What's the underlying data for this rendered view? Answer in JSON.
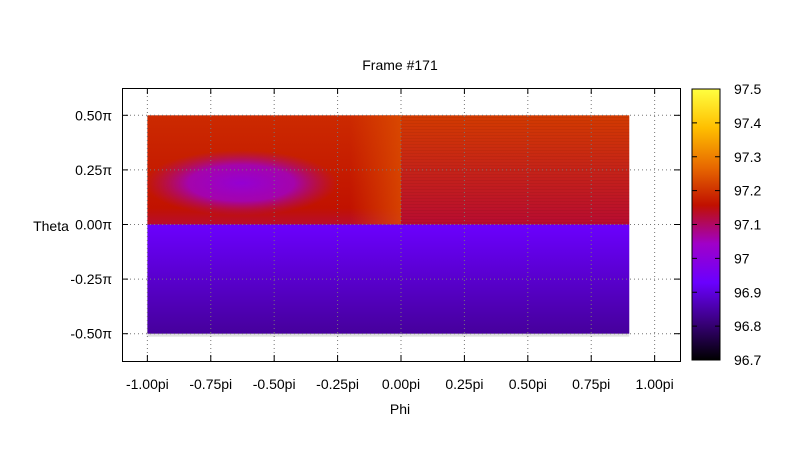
{
  "chart_data": {
    "type": "heatmap",
    "title": "Frame #171",
    "xlabel": "Phi",
    "ylabel": "Theta",
    "x_unit": "pi",
    "y_unit": "π",
    "xlim": [
      -1.1,
      1.1
    ],
    "ylim": [
      -0.625,
      0.625
    ],
    "x_ticks": [
      {
        "value": -1.0,
        "label": "-1.00pi"
      },
      {
        "value": -0.75,
        "label": "-0.75pi"
      },
      {
        "value": -0.5,
        "label": "-0.50pi"
      },
      {
        "value": -0.25,
        "label": "-0.25pi"
      },
      {
        "value": 0.0,
        "label": "0.00pi"
      },
      {
        "value": 0.25,
        "label": "0.25pi"
      },
      {
        "value": 0.5,
        "label": "0.50pi"
      },
      {
        "value": 0.75,
        "label": "0.75pi"
      },
      {
        "value": 1.0,
        "label": "1.00pi"
      }
    ],
    "y_ticks": [
      {
        "value": 0.5,
        "label": "0.50π"
      },
      {
        "value": 0.25,
        "label": "0.25π"
      },
      {
        "value": 0.0,
        "label": "0.00π"
      },
      {
        "value": -0.25,
        "label": "-0.25π"
      },
      {
        "value": -0.5,
        "label": "-0.50π"
      }
    ],
    "grid": true,
    "data_extent": {
      "x": [
        -1.0,
        0.9
      ],
      "y": [
        -0.5,
        0.5
      ]
    },
    "colorbar": {
      "range": [
        96.7,
        97.5
      ],
      "ticks": [
        {
          "value": 97.5,
          "label": "97.5"
        },
        {
          "value": 97.4,
          "label": "97.4"
        },
        {
          "value": 97.3,
          "label": "97.3"
        },
        {
          "value": 97.2,
          "label": "97.2"
        },
        {
          "value": 97.1,
          "label": "97.1"
        },
        {
          "value": 97.0,
          "label": "97"
        },
        {
          "value": 96.9,
          "label": "96.9"
        },
        {
          "value": 96.8,
          "label": "96.8"
        },
        {
          "value": 96.7,
          "label": "96.7"
        }
      ],
      "palette": [
        "#000000",
        "#3b007f",
        "#6a00ff",
        "#a000c8",
        "#c01000",
        "#e86a00",
        "#ffbf00",
        "#ffff40"
      ]
    },
    "regions": [
      {
        "name": "lower-hemisphere",
        "x": [
          -1.0,
          0.9
        ],
        "y_top": 0.0,
        "y_bottom": -0.5,
        "value_top": 96.93,
        "value_bottom": 96.84
      },
      {
        "name": "upper-left",
        "x": [
          -1.0,
          0.0
        ],
        "y": [
          0.0,
          0.5
        ],
        "value": 97.18
      },
      {
        "name": "upper-left-cool-spot",
        "center": [
          -0.63,
          0.19
        ],
        "radius_x": 0.38,
        "radius_y": 0.15,
        "value": 97.02
      },
      {
        "name": "upper-left-warm-strip",
        "x": [
          -0.2,
          0.0
        ],
        "y": [
          0.0,
          0.5
        ],
        "value": 97.24
      },
      {
        "name": "upper-right",
        "x": [
          0.0,
          0.9
        ],
        "y": [
          0.0,
          0.5
        ],
        "value_top": 97.21,
        "value_bottom": 97.13
      }
    ]
  }
}
